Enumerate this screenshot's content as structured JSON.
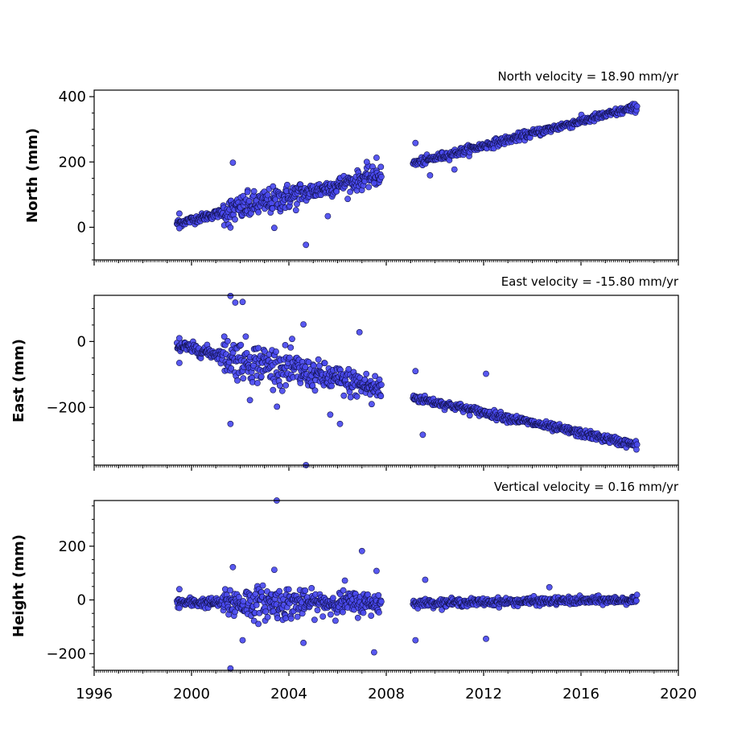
{
  "chart_data": [
    {
      "type": "scatter",
      "panel": "north",
      "title": "North velocity = 18.90 mm/yr",
      "ylabel": "North (mm)",
      "xlim": [
        1996,
        2020
      ],
      "ylim": [
        -100,
        420
      ],
      "yticks": [
        0,
        200,
        400
      ],
      "marker_color": "#4a4aef",
      "edge_color": "#10104a",
      "segments": [
        {
          "x_start": 1999.4,
          "x_end": 2007.8,
          "y_start": 12,
          "y_end": 160,
          "scatter": 20
        },
        {
          "x_start": 2009.1,
          "x_end": 2018.3,
          "y_start": 195,
          "y_end": 368,
          "scatter": 6
        }
      ],
      "outliers": [
        [
          1999.5,
          42
        ],
        [
          1999.5,
          -3
        ],
        [
          2001.7,
          198
        ],
        [
          2001.6,
          -1
        ],
        [
          2003.4,
          -2
        ],
        [
          2004.7,
          -54
        ],
        [
          2005.6,
          34
        ],
        [
          2007.6,
          213
        ],
        [
          2007.2,
          200
        ],
        [
          2009.2,
          258
        ],
        [
          2010.8,
          177
        ],
        [
          2009.8,
          159
        ],
        [
          2002.3,
          108
        ],
        [
          2007.5,
          135
        ]
      ]
    },
    {
      "type": "scatter",
      "panel": "east",
      "title": "East velocity = -15.80 mm/yr",
      "ylabel": "East (mm)",
      "xlim": [
        1996,
        2020
      ],
      "ylim": [
        -375,
        140
      ],
      "yticks": [
        -200,
        0
      ],
      "marker_color": "#4a4aef",
      "edge_color": "#10104a",
      "segments": [
        {
          "x_start": 1999.4,
          "x_end": 2007.8,
          "y_start": -12,
          "y_end": -145,
          "scatter": 30
        },
        {
          "x_start": 2009.1,
          "x_end": 2018.3,
          "y_start": -170,
          "y_end": -315,
          "scatter": 6
        }
      ],
      "outliers": [
        [
          1999.5,
          10
        ],
        [
          1999.5,
          -65
        ],
        [
          2001.6,
          138
        ],
        [
          2001.8,
          118
        ],
        [
          2002.1,
          120
        ],
        [
          2001.6,
          -250
        ],
        [
          2002.4,
          -178
        ],
        [
          2004.6,
          52
        ],
        [
          2004.7,
          -375
        ],
        [
          2005.7,
          -222
        ],
        [
          2006.1,
          -250
        ],
        [
          2006.9,
          28
        ],
        [
          2009.2,
          -90
        ],
        [
          2009.5,
          -283
        ],
        [
          2012.1,
          -98
        ],
        [
          2007.4,
          -190
        ]
      ]
    },
    {
      "type": "scatter",
      "panel": "height",
      "title": "Vertical velocity = 0.16 mm/yr",
      "ylabel": "Height (mm)",
      "xlabel_ticks": [
        "1996",
        "2000",
        "2004",
        "2008",
        "2012",
        "2016",
        "2020"
      ],
      "xlim": [
        1996,
        2020
      ],
      "ylim": [
        -262,
        370
      ],
      "yticks": [
        -200,
        0,
        200
      ],
      "marker_color": "#4a4aef",
      "edge_color": "#10104a",
      "segments": [
        {
          "x_start": 1999.4,
          "x_end": 2007.8,
          "y_start": -10,
          "y_end": -12,
          "scatter": 30
        },
        {
          "x_start": 2009.1,
          "x_end": 2018.3,
          "y_start": -12,
          "y_end": 0,
          "scatter": 7
        }
      ],
      "outliers": [
        [
          1999.5,
          40
        ],
        [
          1999.5,
          -30
        ],
        [
          2003.5,
          370
        ],
        [
          2001.6,
          -255
        ],
        [
          2001.7,
          122
        ],
        [
          2002.1,
          -150
        ],
        [
          2007.0,
          182
        ],
        [
          2007.6,
          108
        ],
        [
          2007.5,
          -195
        ],
        [
          2004.6,
          -160
        ],
        [
          2009.2,
          -150
        ],
        [
          2009.6,
          75
        ],
        [
          2012.1,
          -145
        ],
        [
          2014.7,
          47
        ],
        [
          2003.4,
          112
        ],
        [
          2006.3,
          72
        ]
      ]
    }
  ]
}
